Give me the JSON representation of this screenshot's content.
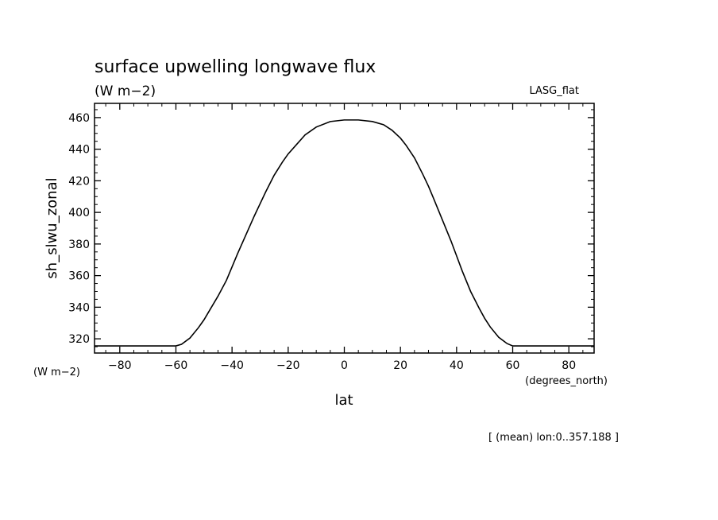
{
  "chart_data": {
    "type": "line",
    "title": "surface upwelling longwave flux",
    "units": "(W m−2)",
    "dataset_label": "LASG_flat",
    "xlabel": "lat",
    "ylabel": "sh_slwu_zonal",
    "x_units": "(degrees_north)",
    "y_units": "(W m−2)",
    "footnote": "[ (mean) lon:0..357.188 ]",
    "xlim": [
      -89,
      89
    ],
    "ylim": [
      311,
      469
    ],
    "x_ticks": [
      -80,
      -60,
      -40,
      -20,
      0,
      20,
      40,
      60,
      80
    ],
    "x_tick_labels": [
      "−80",
      "−60",
      "−40",
      "−20",
      "0",
      "20",
      "40",
      "60",
      "80"
    ],
    "y_ticks": [
      320,
      340,
      360,
      380,
      400,
      420,
      440,
      460
    ],
    "y_tick_labels": [
      "320",
      "340",
      "360",
      "380",
      "400",
      "420",
      "440",
      "460"
    ],
    "grid": false,
    "series": [
      {
        "line_color": "#000000",
        "x": [
          -89,
          -85,
          -80,
          -75,
          -70,
          -65,
          -60,
          -58,
          -55,
          -52,
          -50,
          -48,
          -45,
          -42,
          -40,
          -38,
          -35,
          -32,
          -30,
          -28,
          -25,
          -22,
          -20,
          -17,
          -14,
          -10,
          -5,
          0,
          5,
          10,
          14,
          17,
          20,
          22,
          25,
          28,
          30,
          32,
          35,
          38,
          40,
          42,
          45,
          48,
          50,
          52,
          55,
          58,
          60,
          65,
          70,
          75,
          80,
          85,
          89
        ],
        "y": [
          315.5,
          315.5,
          315.5,
          315.5,
          315.5,
          315.5,
          315.5,
          316.5,
          320.5,
          327,
          332,
          338,
          347,
          357,
          365.5,
          374,
          386,
          398,
          405.5,
          413,
          423.5,
          432,
          437,
          443,
          449,
          454,
          457.5,
          458.5,
          458.5,
          457.5,
          455.5,
          452,
          447,
          442.5,
          434.5,
          424,
          416.5,
          408,
          395,
          382,
          372.5,
          363,
          350,
          339.5,
          333,
          327.5,
          321,
          317,
          315.5,
          315.5,
          315.5,
          315.5,
          315.5,
          315.5,
          315.5
        ]
      }
    ]
  }
}
